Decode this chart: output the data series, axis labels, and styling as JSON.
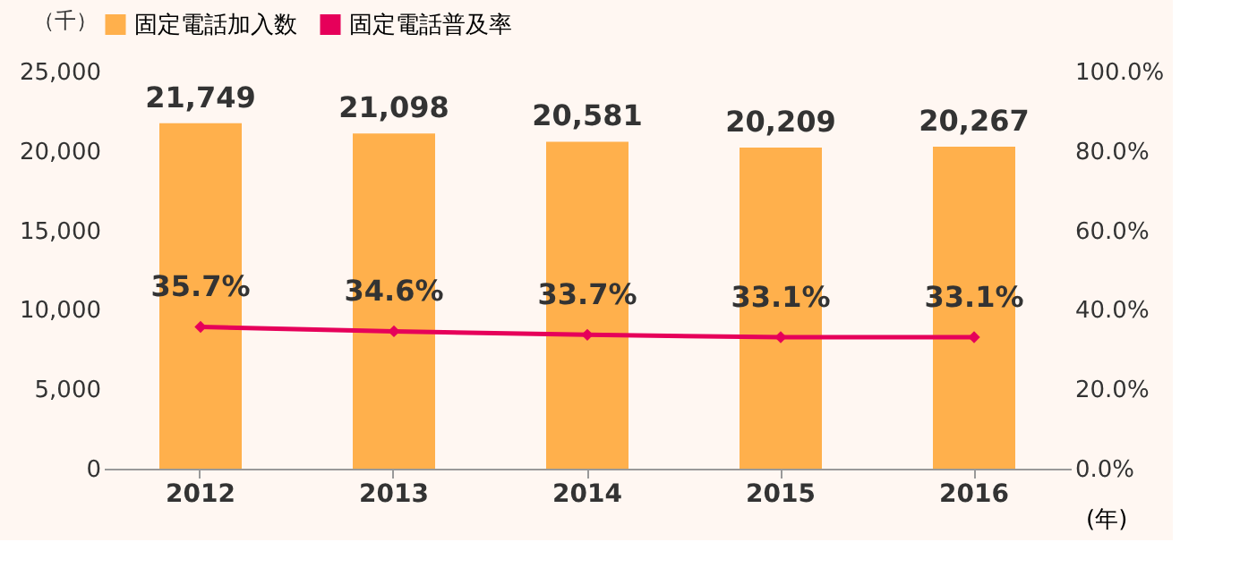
{
  "chart_data": {
    "type": "bar",
    "categories": [
      "2012",
      "2013",
      "2014",
      "2015",
      "2016"
    ],
    "series": [
      {
        "name": "固定電話加入数",
        "color": "#ffb04c",
        "values": [
          21749,
          21098,
          20581,
          20209,
          20267
        ],
        "value_labels": [
          "21,749",
          "21,098",
          "20,581",
          "20,209",
          "20,267"
        ]
      },
      {
        "name": "固定電話普及率",
        "type": "line",
        "axis": "y2",
        "color": "#e6005a",
        "values": [
          35.7,
          34.6,
          33.7,
          33.1,
          33.1
        ],
        "value_labels": [
          "35.7%",
          "34.6%",
          "33.7%",
          "33.1%",
          "33.1%"
        ]
      }
    ],
    "ylabel": "（千）",
    "xlabel": "(年)",
    "ylim": [
      0,
      25000
    ],
    "yticks": [
      {
        "value": 0,
        "label": "0"
      },
      {
        "value": 5000,
        "label": "5,000"
      },
      {
        "value": 10000,
        "label": "10,000"
      },
      {
        "value": 15000,
        "label": "15,000"
      },
      {
        "value": 20000,
        "label": "20,000"
      },
      {
        "value": 25000,
        "label": "25,000"
      }
    ],
    "y2lim": [
      0,
      100
    ],
    "y2ticks": [
      {
        "value": 0,
        "label": "0.0%"
      },
      {
        "value": 20,
        "label": "20.0%"
      },
      {
        "value": 40,
        "label": "40.0%"
      },
      {
        "value": 60,
        "label": "60.0%"
      },
      {
        "value": 80,
        "label": "80.0%"
      },
      {
        "value": 100,
        "label": "100.0%"
      }
    ],
    "legend": "top",
    "marker": "diamond",
    "line_style": "solid",
    "grid": false
  }
}
